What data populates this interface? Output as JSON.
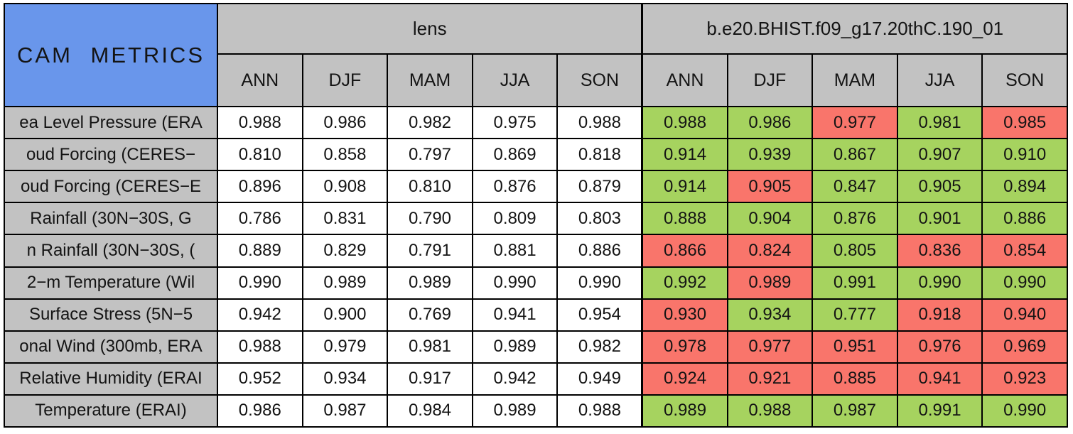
{
  "title": "CAM METRICS",
  "colors": {
    "title_bg": "#6996eb",
    "header_bg": "#c2c2c2",
    "cell_better_green": "#a6d35f",
    "cell_worse_red": "#f9756b",
    "cell_plain_white": "#ffffff",
    "grid": "#000000"
  },
  "groups": {
    "left": "lens",
    "right": "b.e20.BHIST.f09_g17.20thC.190_01"
  },
  "seasons": [
    "ANN",
    "DJF",
    "MAM",
    "JJA",
    "SON"
  ],
  "rows": [
    {
      "label": "ea Level Pressure (ERA",
      "lens": [
        "0.988",
        "0.986",
        "0.982",
        "0.975",
        "0.988"
      ],
      "case": [
        "0.988",
        "0.986",
        "0.977",
        "0.981",
        "0.985"
      ],
      "cc": [
        "g",
        "g",
        "r",
        "g",
        "r"
      ]
    },
    {
      "label": "oud Forcing (CERES−",
      "lens": [
        "0.810",
        "0.858",
        "0.797",
        "0.869",
        "0.818"
      ],
      "case": [
        "0.914",
        "0.939",
        "0.867",
        "0.907",
        "0.910"
      ],
      "cc": [
        "g",
        "g",
        "g",
        "g",
        "g"
      ]
    },
    {
      "label": "oud Forcing (CERES−E",
      "lens": [
        "0.896",
        "0.908",
        "0.810",
        "0.876",
        "0.879"
      ],
      "case": [
        "0.914",
        "0.905",
        "0.847",
        "0.905",
        "0.894"
      ],
      "cc": [
        "g",
        "r",
        "g",
        "g",
        "g"
      ]
    },
    {
      "label": "Rainfall (30N−30S, G",
      "lens": [
        "0.786",
        "0.831",
        "0.790",
        "0.809",
        "0.803"
      ],
      "case": [
        "0.888",
        "0.904",
        "0.876",
        "0.901",
        "0.886"
      ],
      "cc": [
        "g",
        "g",
        "g",
        "g",
        "g"
      ]
    },
    {
      "label": "n Rainfall (30N−30S, (",
      "lens": [
        "0.889",
        "0.829",
        "0.791",
        "0.881",
        "0.886"
      ],
      "case": [
        "0.866",
        "0.824",
        "0.805",
        "0.836",
        "0.854"
      ],
      "cc": [
        "r",
        "r",
        "g",
        "r",
        "r"
      ]
    },
    {
      "label": "2−m Temperature (Wil",
      "lens": [
        "0.990",
        "0.989",
        "0.989",
        "0.990",
        "0.990"
      ],
      "case": [
        "0.992",
        "0.989",
        "0.991",
        "0.990",
        "0.990"
      ],
      "cc": [
        "g",
        "r",
        "g",
        "g",
        "g"
      ]
    },
    {
      "label": "Surface Stress (5N−5",
      "lens": [
        "0.942",
        "0.900",
        "0.769",
        "0.941",
        "0.954"
      ],
      "case": [
        "0.930",
        "0.934",
        "0.777",
        "0.918",
        "0.940"
      ],
      "cc": [
        "r",
        "g",
        "g",
        "r",
        "r"
      ]
    },
    {
      "label": "onal Wind (300mb, ERA",
      "lens": [
        "0.988",
        "0.979",
        "0.981",
        "0.989",
        "0.982"
      ],
      "case": [
        "0.978",
        "0.977",
        "0.951",
        "0.976",
        "0.969"
      ],
      "cc": [
        "r",
        "r",
        "r",
        "r",
        "r"
      ]
    },
    {
      "label": "Relative Humidity (ERAI",
      "lens": [
        "0.952",
        "0.934",
        "0.917",
        "0.942",
        "0.949"
      ],
      "case": [
        "0.924",
        "0.921",
        "0.885",
        "0.941",
        "0.923"
      ],
      "cc": [
        "r",
        "r",
        "r",
        "r",
        "r"
      ]
    },
    {
      "label": "Temperature (ERAI)",
      "lens": [
        "0.986",
        "0.987",
        "0.984",
        "0.989",
        "0.988"
      ],
      "case": [
        "0.989",
        "0.988",
        "0.987",
        "0.991",
        "0.990"
      ],
      "cc": [
        "g",
        "g",
        "g",
        "g",
        "g"
      ]
    }
  ],
  "chart_data": {
    "type": "table",
    "title": "CAM METRICS",
    "column_groups": [
      "lens",
      "b.e20.BHIST.f09_g17.20thC.190_01"
    ],
    "columns": [
      "ANN",
      "DJF",
      "MAM",
      "JJA",
      "SON",
      "ANN",
      "DJF",
      "MAM",
      "JJA",
      "SON"
    ],
    "row_labels": [
      "ea Level Pressure (ERA",
      "oud Forcing (CERES−",
      "oud Forcing (CERES−E",
      "Rainfall (30N−30S, G",
      "n Rainfall (30N−30S, (",
      "2−m Temperature (Wil",
      "Surface Stress (5N−5",
      "onal Wind (300mb, ERA",
      "Relative Humidity (ERAI",
      "Temperature (ERAI)"
    ],
    "values": [
      [
        0.988,
        0.986,
        0.982,
        0.975,
        0.988,
        0.988,
        0.986,
        0.977,
        0.981,
        0.985
      ],
      [
        0.81,
        0.858,
        0.797,
        0.869,
        0.818,
        0.914,
        0.939,
        0.867,
        0.907,
        0.91
      ],
      [
        0.896,
        0.908,
        0.81,
        0.876,
        0.879,
        0.914,
        0.905,
        0.847,
        0.905,
        0.894
      ],
      [
        0.786,
        0.831,
        0.79,
        0.809,
        0.803,
        0.888,
        0.904,
        0.876,
        0.901,
        0.886
      ],
      [
        0.889,
        0.829,
        0.791,
        0.881,
        0.886,
        0.866,
        0.824,
        0.805,
        0.836,
        0.854
      ],
      [
        0.99,
        0.989,
        0.989,
        0.99,
        0.99,
        0.992,
        0.989,
        0.991,
        0.99,
        0.99
      ],
      [
        0.942,
        0.9,
        0.769,
        0.941,
        0.954,
        0.93,
        0.934,
        0.777,
        0.918,
        0.94
      ],
      [
        0.988,
        0.979,
        0.981,
        0.989,
        0.982,
        0.978,
        0.977,
        0.951,
        0.976,
        0.969
      ],
      [
        0.952,
        0.934,
        0.917,
        0.942,
        0.949,
        0.924,
        0.921,
        0.885,
        0.941,
        0.923
      ],
      [
        0.986,
        0.987,
        0.984,
        0.989,
        0.988,
        0.989,
        0.988,
        0.987,
        0.991,
        0.99
      ]
    ],
    "right_block_cell_highlight": [
      [
        "green",
        "green",
        "red",
        "green",
        "red"
      ],
      [
        "green",
        "green",
        "green",
        "green",
        "green"
      ],
      [
        "green",
        "red",
        "green",
        "green",
        "green"
      ],
      [
        "green",
        "green",
        "green",
        "green",
        "green"
      ],
      [
        "red",
        "red",
        "green",
        "red",
        "red"
      ],
      [
        "green",
        "red",
        "green",
        "green",
        "green"
      ],
      [
        "red",
        "green",
        "green",
        "red",
        "red"
      ],
      [
        "red",
        "red",
        "red",
        "red",
        "red"
      ],
      [
        "red",
        "red",
        "red",
        "red",
        "red"
      ],
      [
        "green",
        "green",
        "green",
        "green",
        "green"
      ]
    ]
  }
}
